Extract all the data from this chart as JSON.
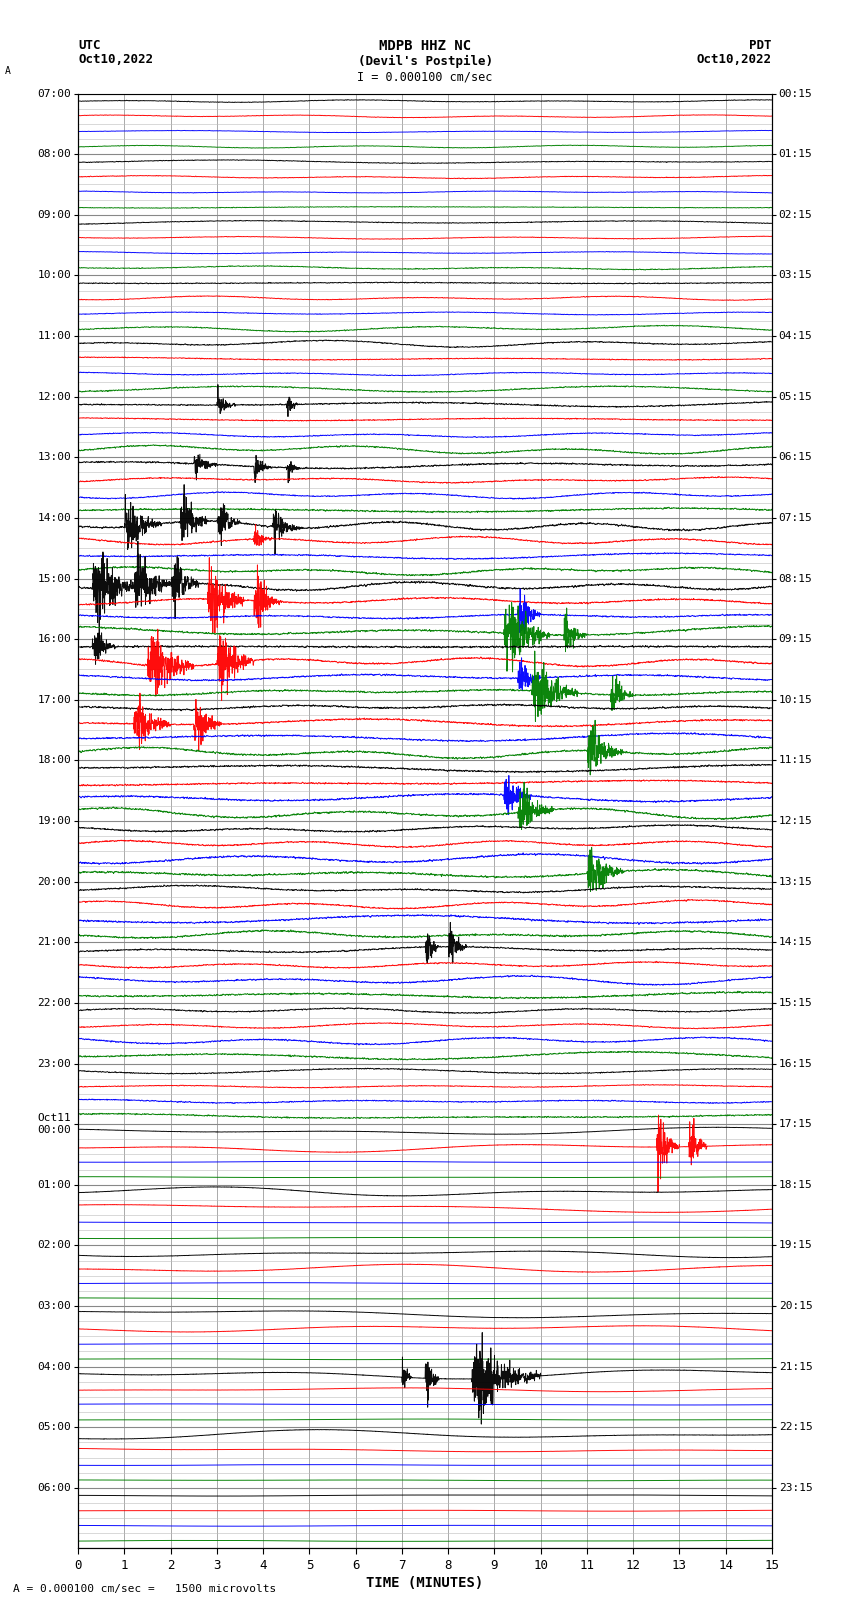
{
  "title_line1": "MDPB HHZ NC",
  "title_line2": "(Devil's Postpile)",
  "scale_label": "I = 0.000100 cm/sec",
  "left_header_line1": "UTC",
  "left_header_line2": "Oct10,2022",
  "right_header_line1": "PDT",
  "right_header_line2": "Oct10,2022",
  "bottom_label": "TIME (MINUTES)",
  "scale_note": "A = 0.000100 cm/sec =   1500 microvolts",
  "xlim": [
    0,
    15
  ],
  "xticks": [
    0,
    1,
    2,
    3,
    4,
    5,
    6,
    7,
    8,
    9,
    10,
    11,
    12,
    13,
    14,
    15
  ],
  "utc_labels": [
    "07:00",
    "08:00",
    "09:00",
    "10:00",
    "11:00",
    "12:00",
    "13:00",
    "14:00",
    "15:00",
    "16:00",
    "17:00",
    "18:00",
    "19:00",
    "20:00",
    "21:00",
    "22:00",
    "23:00",
    "Oct11\n00:00",
    "01:00",
    "02:00",
    "03:00",
    "04:00",
    "05:00",
    "06:00"
  ],
  "pdt_labels": [
    "00:15",
    "01:15",
    "02:15",
    "03:15",
    "04:15",
    "05:15",
    "06:15",
    "07:15",
    "08:15",
    "09:15",
    "10:15",
    "11:15",
    "12:15",
    "13:15",
    "14:15",
    "15:15",
    "16:15",
    "17:15",
    "18:15",
    "19:15",
    "20:15",
    "21:15",
    "22:15",
    "23:15"
  ],
  "n_hours": 24,
  "colors": [
    "black",
    "red",
    "blue",
    "green"
  ],
  "bg_color": "#ffffff",
  "grid_color": "#888888",
  "subgrid_color": "#bbbbbb",
  "fig_bg": "#ffffff",
  "trace_lw": 0.7
}
